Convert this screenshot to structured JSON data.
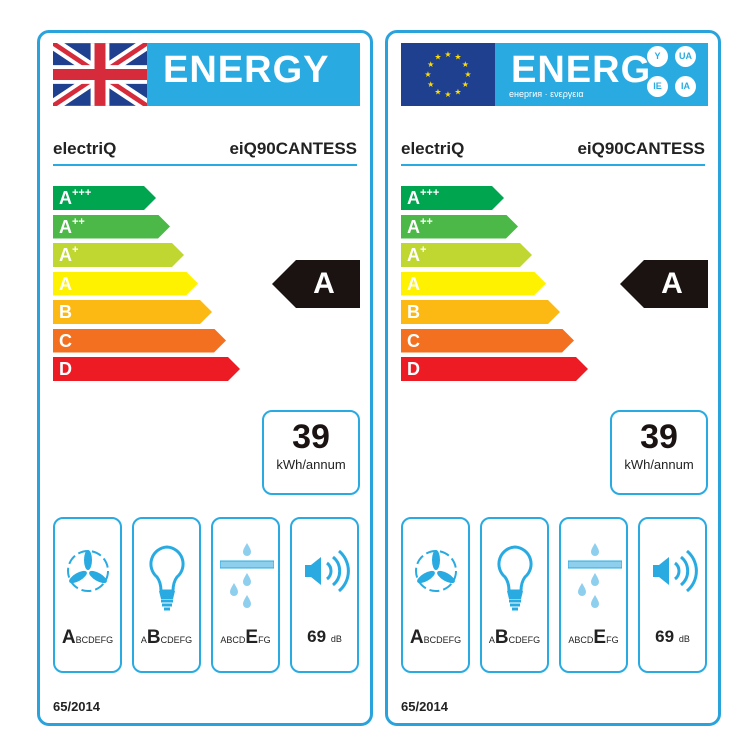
{
  "colors": {
    "accent": "#29abe2",
    "arrow": "#1a1311",
    "scale": [
      "#00a54f",
      "#4cb848",
      "#bfd730",
      "#fff200",
      "#fdb913",
      "#f37021",
      "#ed1c24"
    ]
  },
  "scale": [
    {
      "letter": "A",
      "sup": "+++"
    },
    {
      "letter": "A",
      "sup": "++"
    },
    {
      "letter": "A",
      "sup": "+"
    },
    {
      "letter": "A",
      "sup": ""
    },
    {
      "letter": "B",
      "sup": ""
    },
    {
      "letter": "C",
      "sup": ""
    },
    {
      "letter": "D",
      "sup": ""
    }
  ],
  "labels": [
    {
      "flag": "uk-flag",
      "title": "ENERGY",
      "subtitle": "",
      "badges": [],
      "brand": "electriQ",
      "model": "eiQ90CANTESS",
      "rating": "A",
      "consumption": "39",
      "consumption_unit": "kWh/annum",
      "fan_class": {
        "pre": "",
        "sel": "A",
        "post": "BCDEFG"
      },
      "light_class": {
        "pre": "A",
        "sel": "B",
        "post": "CDEFG"
      },
      "grease_class": {
        "pre": "ABCD",
        "sel": "E",
        "post": "FG"
      },
      "noise": "69",
      "noise_unit": "dB",
      "regulation": "65/2014"
    },
    {
      "flag": "eu-flag",
      "title": "ENERG",
      "subtitle": "енергия · ενεργεια",
      "badges": [
        "Y",
        "UA",
        "IE",
        "IA"
      ],
      "brand": "electriQ",
      "model": "eiQ90CANTESS",
      "rating": "A",
      "consumption": "39",
      "consumption_unit": "kWh/annum",
      "fan_class": {
        "pre": "",
        "sel": "A",
        "post": "BCDEFG"
      },
      "light_class": {
        "pre": "A",
        "sel": "B",
        "post": "CDEFG"
      },
      "grease_class": {
        "pre": "ABCD",
        "sel": "E",
        "post": "FG"
      },
      "noise": "69",
      "noise_unit": "dB",
      "regulation": "65/2014"
    }
  ]
}
